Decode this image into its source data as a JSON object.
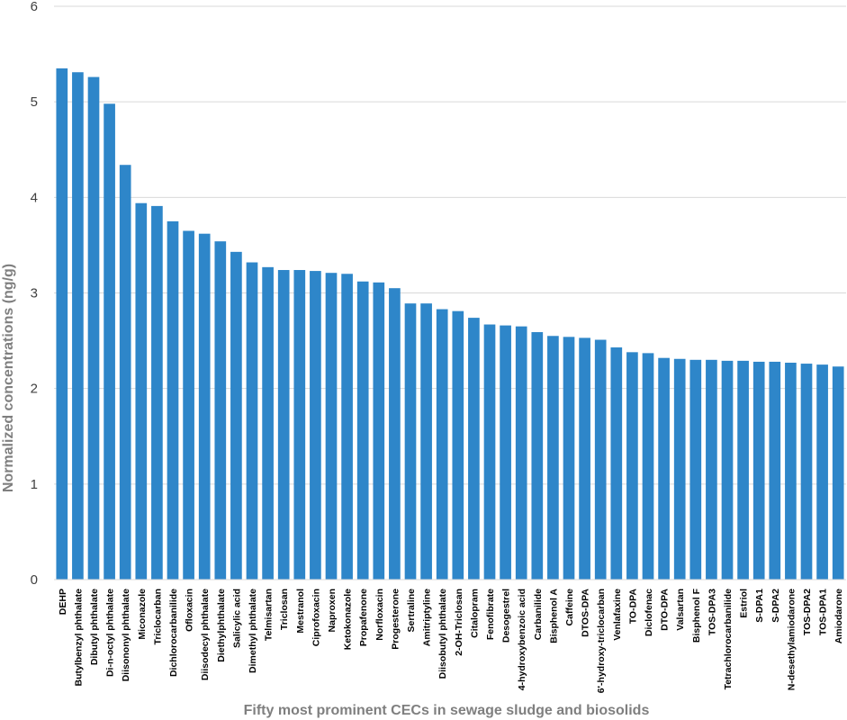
{
  "chart_data": {
    "type": "bar",
    "title": "",
    "xlabel": "Fifty most prominent CECs in sewage sludge and biosolids",
    "ylabel": "Normalized concentrations (ng/g)",
    "ylim": [
      0,
      6
    ],
    "yticks": [
      0,
      1,
      2,
      3,
      4,
      5,
      6
    ],
    "grid": true,
    "legend": "none",
    "bar_color": "#2e86c9",
    "grid_color": "#d9d9d9",
    "categories": [
      "DEHP",
      "Butylbenzyl phthalate",
      "Dibutyl phthalate",
      "Di-n-octyl phthalate",
      "Diisononyl phthalate",
      "Miconazole",
      "Triclocarban",
      "Dichlorocarbanilide",
      "Ofloxacin",
      "Diisodecyl phthalate",
      "Diethylphthalate",
      "Salicylic acid",
      "Dimethyl phthalate",
      "Telmisartan",
      "Triclosan",
      "Mestranol",
      "Ciprofoxacin",
      "Naproxen",
      "Ketokonazole",
      "Propafenone",
      "Norfloxacin",
      "Progesterone",
      "Sertraline",
      "Amitriptyline",
      "Diisobutyl phthalate",
      "2-OH-Triclosan",
      "Citalopram",
      "Fenofibrate",
      "Desogestrel",
      "4-hydroxybenzoic acid",
      "Carbanilide",
      "Bisphenol A",
      "Caffeine",
      "DTOS-DPA",
      "6'-hydroxy-triclocarban",
      "Venlafaxine",
      "TO-DPA",
      "Diclofenac",
      "DTO-DPA",
      "Valsartan",
      "Bisphenol F",
      "TOS-DPA3",
      "Tetrachlorocarbanilide",
      "Estriol",
      "S-DPA1",
      "S-DPA2",
      "N-desethylamiodarone",
      "TOS-DPA2",
      "TOS-DPA1",
      "Amiodarone"
    ],
    "values": [
      5.35,
      5.31,
      5.26,
      4.98,
      4.34,
      3.94,
      3.91,
      3.75,
      3.65,
      3.62,
      3.54,
      3.43,
      3.32,
      3.27,
      3.24,
      3.24,
      3.23,
      3.21,
      3.2,
      3.12,
      3.11,
      3.05,
      2.89,
      2.89,
      2.83,
      2.81,
      2.74,
      2.67,
      2.66,
      2.65,
      2.59,
      2.55,
      2.54,
      2.53,
      2.51,
      2.43,
      2.38,
      2.37,
      2.32,
      2.31,
      2.3,
      2.3,
      2.29,
      2.29,
      2.28,
      2.28,
      2.27,
      2.26,
      2.25,
      2.23
    ]
  }
}
